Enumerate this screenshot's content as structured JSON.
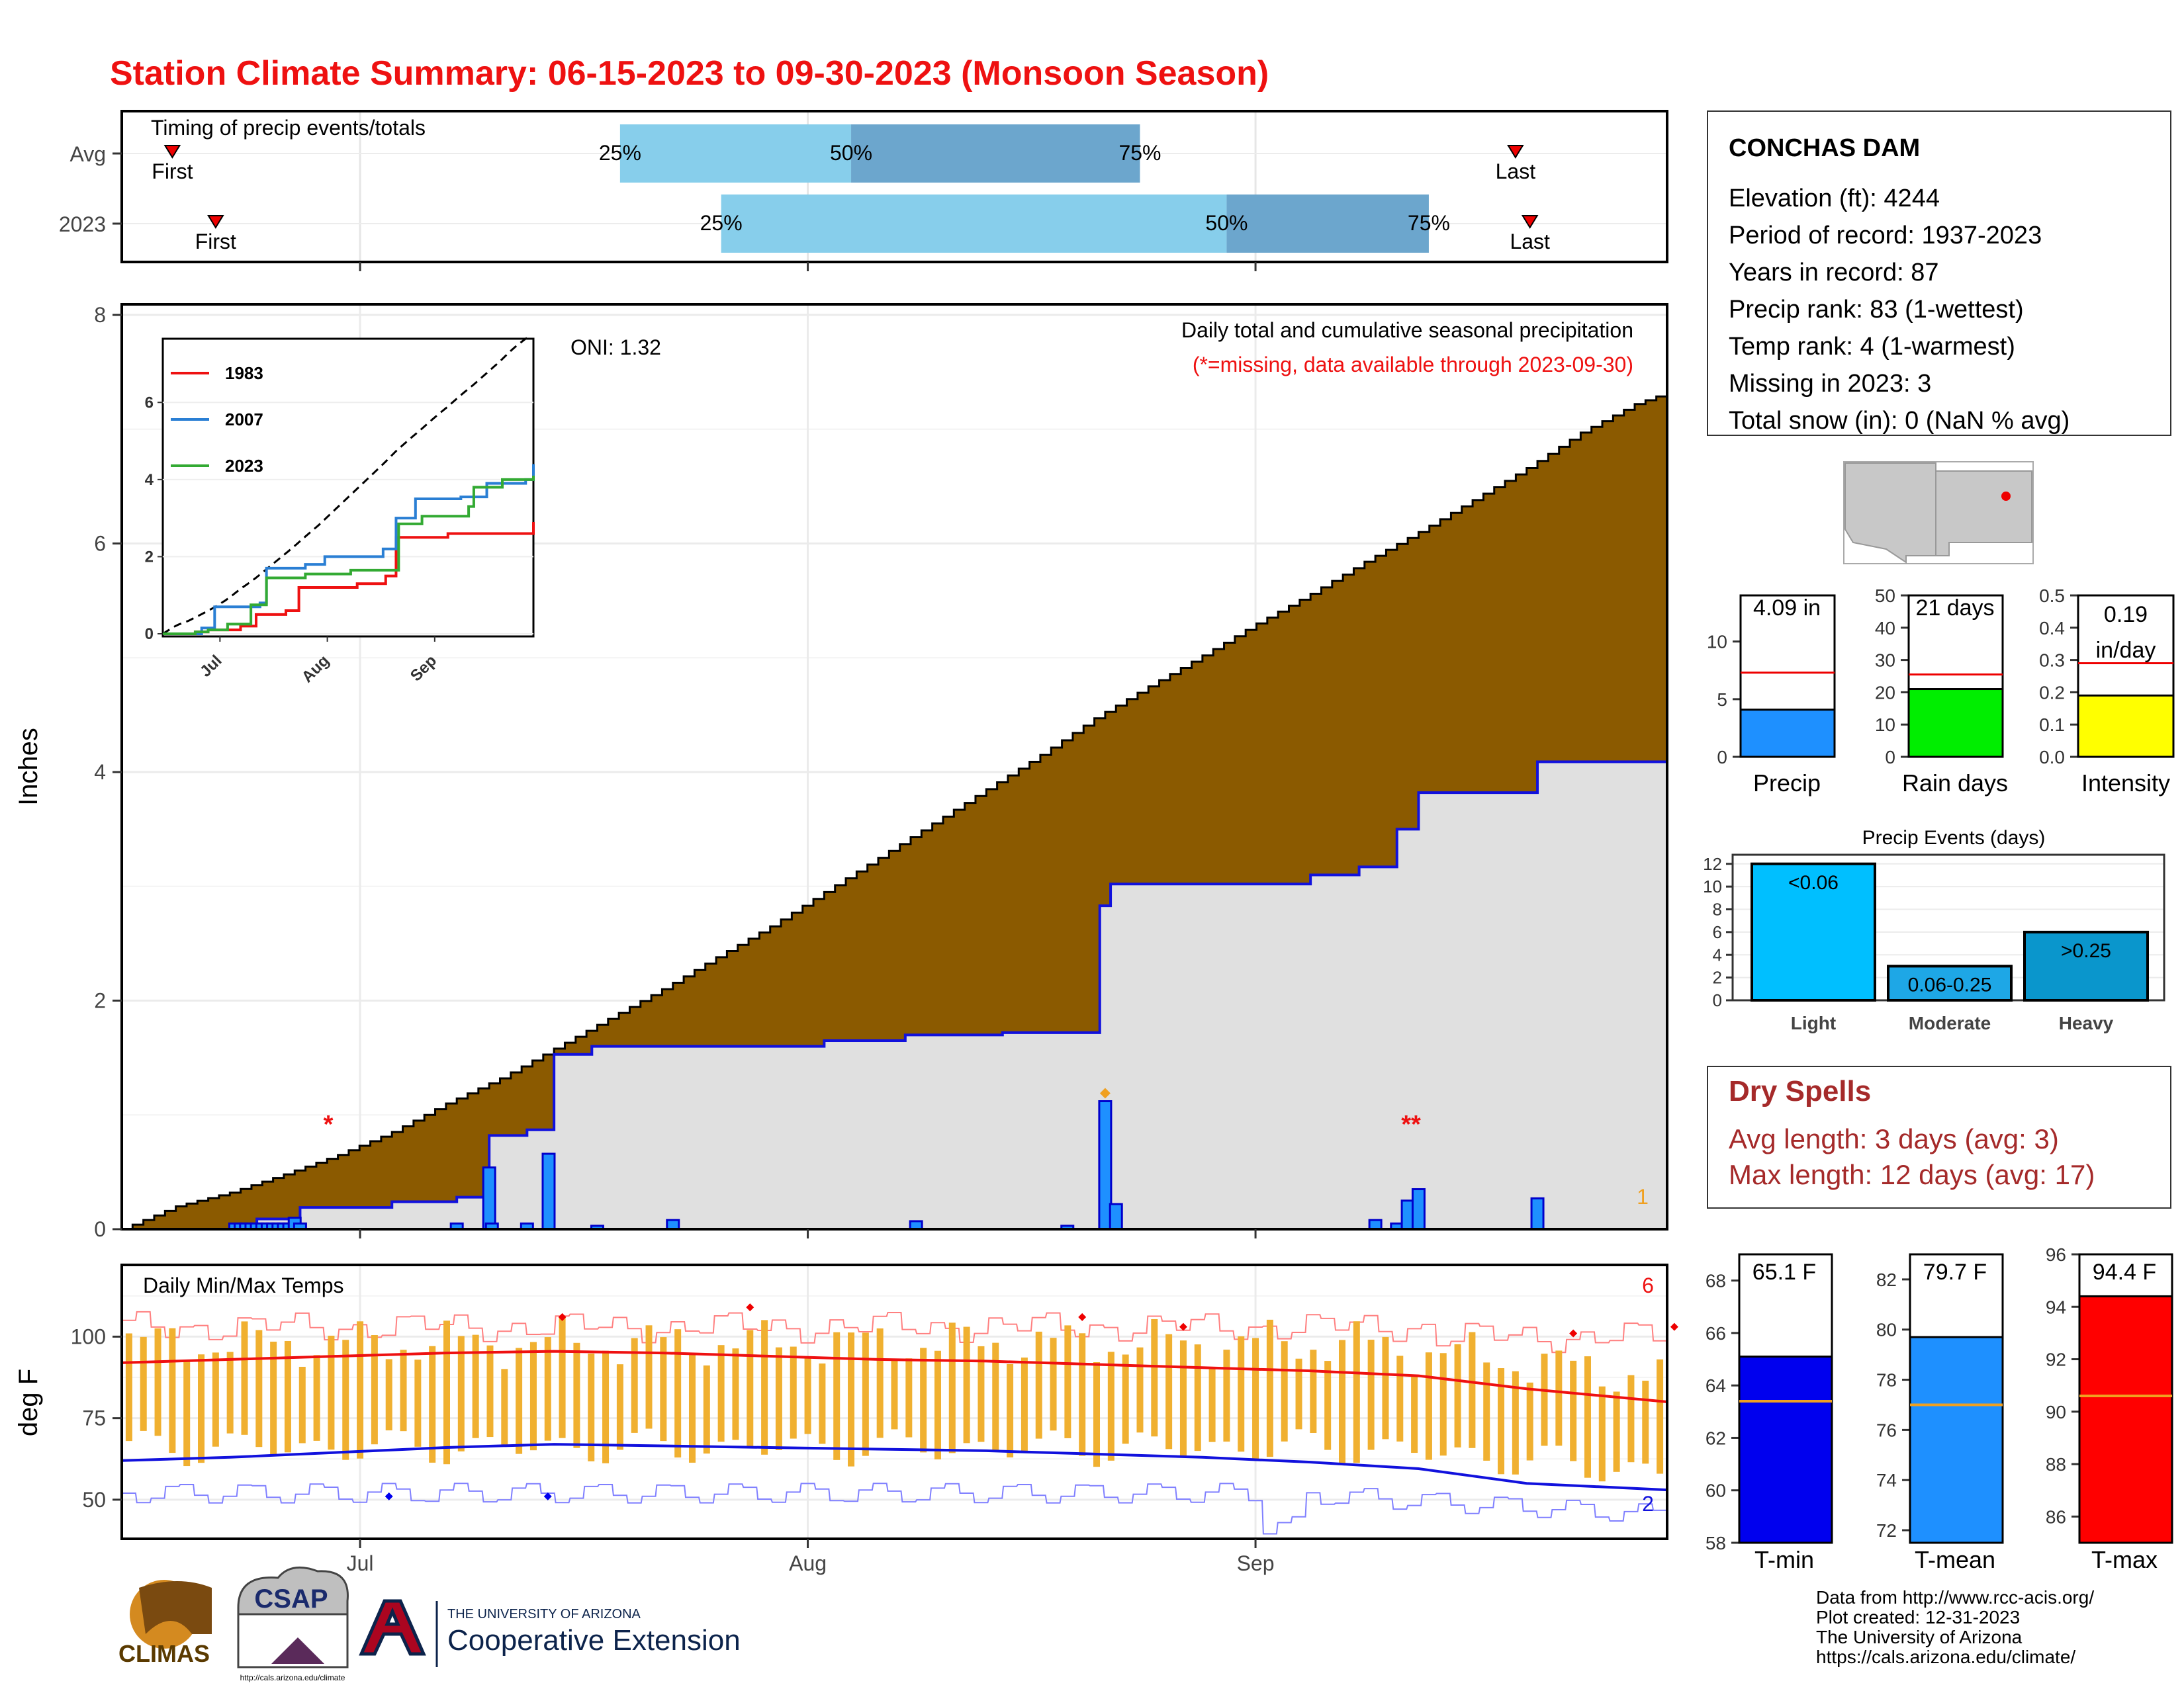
{
  "title": "Station Climate Summary: 06-15-2023 to 09-30-2023 (Monsoon Season)",
  "colors": {
    "title": "#ee1111",
    "precip_fill": "#8b5a00",
    "avg_fill": "#e0e0e0",
    "avg_line": "#1111dd",
    "daily_bar": "#1e90ff",
    "light_blue": "#87ceeb",
    "mid_blue": "#6ca6cd",
    "temp_bar": "#f0b030",
    "tmax_avg": "#ee1111",
    "tmin_avg": "#1111dd",
    "dry_text": "#a52a2a"
  },
  "timing": {
    "title": "Timing of precip events/totals",
    "rows": [
      {
        "label": "Avg",
        "first": "First",
        "last": "Last",
        "p25": "25%",
        "p50": "50%",
        "p75": "75%",
        "first_date": "2023-06-18",
        "p25_date": "2023-07-19",
        "p50_date": "2023-08-04",
        "p75_date": "2023-08-24",
        "last_date": "2023-09-19"
      },
      {
        "label": "2023",
        "first": "First",
        "last": "Last",
        "p25": "25%",
        "p50": "50%",
        "p75": "75%",
        "first_date": "2023-06-21",
        "p25_date": "2023-07-26",
        "p50_date": "2023-08-30",
        "p75_date": "2023-09-13",
        "last_date": "2023-09-20"
      }
    ]
  },
  "precip_panel": {
    "title": "Daily total and cumulative seasonal precipitation",
    "note": "(*=missing, data available through 2023-09-30)",
    "oni": "ONI: 1.32",
    "ylabel": "Inches",
    "yticks": [
      "0",
      "2",
      "4",
      "6",
      "8"
    ],
    "ylim": [
      0,
      8
    ],
    "corner_count": "1",
    "missing_1": "*",
    "missing_2": "**"
  },
  "inset": {
    "yticks": [
      "0",
      "2",
      "4",
      "6"
    ],
    "xticks": [
      "Jul",
      "Aug",
      "Sep"
    ],
    "legend": [
      {
        "name": "1983",
        "color": "#ee1111"
      },
      {
        "name": "2007",
        "color": "#2a7fd4"
      },
      {
        "name": "2023",
        "color": "#33aa33"
      }
    ]
  },
  "temp_panel": {
    "title": "Daily Min/Max Temps",
    "ylabel": "deg F",
    "yticks": [
      "50",
      "75",
      "100"
    ],
    "ylim": [
      40,
      120
    ],
    "count_high": "6",
    "count_low": "2"
  },
  "x_axis": {
    "ticks": [
      "Jul",
      "Aug",
      "Sep"
    ],
    "start": "2023-06-15",
    "end": "2023-09-30"
  },
  "station": {
    "name": "CONCHAS DAM",
    "lines": [
      "Elevation (ft): 4244",
      "Period of record: 1937-2023",
      "Years in record: 87",
      "Precip rank: 83 (1-wettest)",
      "Temp rank: 4 (1-warmest)",
      "Missing in 2023: 3",
      "Total snow (in): 0 (NaN % avg)"
    ]
  },
  "summary_bars": {
    "precip": {
      "label": "Precip",
      "value_text": "4.09 in",
      "value": 4.09,
      "avg": 7.3,
      "yticks": [
        "0",
        "5",
        "10"
      ],
      "ylim": [
        0,
        14
      ]
    },
    "raindays": {
      "label": "Rain days",
      "value_text": "21 days",
      "value": 21,
      "avg": 25.5,
      "yticks": [
        "0",
        "10",
        "20",
        "30",
        "40",
        "50"
      ],
      "ylim": [
        0,
        50
      ]
    },
    "intensity": {
      "label": "Intensity",
      "value_text": "0.19",
      "value_text2": "in/day",
      "value": 0.19,
      "avg": 0.29,
      "yticks": [
        "0.0",
        "0.1",
        "0.2",
        "0.3",
        "0.4",
        "0.5"
      ],
      "ylim": [
        0,
        0.5
      ]
    }
  },
  "events": {
    "title": "Precip Events (days)",
    "yticks": [
      "0",
      "2",
      "4",
      "6",
      "8",
      "10",
      "12"
    ],
    "ylim": [
      0,
      12
    ],
    "bars": [
      {
        "label": "Light",
        "text": "<0.06",
        "value": 12,
        "color": "#00bfff"
      },
      {
        "label": "Moderate",
        "text": "0.06-0.25",
        "value": 3,
        "color": "#1ea7e6"
      },
      {
        "label": "Heavy",
        "text": ">0.25",
        "value": 6,
        "color": "#0a96cc"
      }
    ]
  },
  "dry_spells": {
    "title": "Dry Spells",
    "line1": "Avg length: 3 days (avg: 3)",
    "line2": "Max length: 12 days (avg: 17)"
  },
  "temps": {
    "tmin": {
      "label": "T-min",
      "value_text": "65.1 F",
      "value": 65.1,
      "avg": 63.4,
      "yticks": [
        "58",
        "60",
        "62",
        "64",
        "66",
        "68"
      ],
      "ylim": [
        58,
        69
      ],
      "color": "#0000ee"
    },
    "tmean": {
      "label": "T-mean",
      "value_text": "79.7 F",
      "value": 79.7,
      "avg": 77.0,
      "yticks": [
        "72",
        "74",
        "76",
        "78",
        "80",
        "82"
      ],
      "ylim": [
        71.5,
        83
      ],
      "color": "#1e90ff"
    },
    "tmax": {
      "label": "T-max",
      "value_text": "94.4 F",
      "value": 94.4,
      "avg": 90.6,
      "yticks": [
        "86",
        "88",
        "90",
        "92",
        "94",
        "96"
      ],
      "ylim": [
        85,
        96
      ],
      "color": "#ff0000"
    }
  },
  "credits": [
    "Data from http://www.rcc-acis.org/",
    "Plot created: 12-31-2023",
    "The University of Arizona",
    "https://cals.arizona.edu/climate/"
  ],
  "logos": {
    "climas": "CLIMAS",
    "csap": "CSAP",
    "csap_url": "http://cals.arizona.edu/climate",
    "ua_top": "THE UNIVERSITY OF ARIZONA",
    "ua_bottom": "Cooperative Extension"
  },
  "chart_data": [
    {
      "type": "area",
      "title": "Daily total and cumulative seasonal precipitation",
      "ylabel": "Inches",
      "ylim": [
        0,
        8
      ],
      "cumulative_avg_knots": [
        [
          0,
          0
        ],
        [
          25,
          0
        ],
        [
          25,
          0.09
        ],
        [
          33,
          0.09
        ],
        [
          33,
          0.19
        ],
        [
          50,
          0.19
        ],
        [
          50,
          0.24
        ],
        [
          62,
          0.24
        ],
        [
          62,
          0.28
        ],
        [
          68,
          0.28
        ],
        [
          68,
          0.82
        ],
        [
          75,
          0.82
        ],
        [
          75,
          0.87
        ],
        [
          80,
          0.87
        ],
        [
          80,
          1.53
        ],
        [
          87,
          1.53
        ],
        [
          87,
          1.6
        ],
        [
          102,
          1.6
        ],
        [
          130,
          1.6
        ],
        [
          130,
          1.65
        ],
        [
          145,
          1.65
        ],
        [
          145,
          1.7
        ],
        [
          163,
          1.7
        ],
        [
          163,
          1.72
        ],
        [
          181,
          1.72
        ],
        [
          181,
          2.83
        ],
        [
          183,
          2.83
        ],
        [
          183,
          3.02
        ],
        [
          220,
          3.02
        ],
        [
          220,
          3.1
        ],
        [
          229,
          3.1
        ],
        [
          229,
          3.17
        ],
        [
          236,
          3.17
        ],
        [
          236,
          3.5
        ],
        [
          240,
          3.5
        ],
        [
          240,
          3.82
        ],
        [
          262,
          3.82
        ],
        [
          262,
          4.09
        ],
        [
          286,
          4.09
        ]
      ],
      "cumulative_normal_knots": [
        [
          0,
          0
        ],
        [
          10,
          0.2
        ],
        [
          20,
          0.32
        ],
        [
          30,
          0.48
        ],
        [
          40,
          0.65
        ],
        [
          50,
          0.85
        ],
        [
          60,
          1.1
        ],
        [
          70,
          1.32
        ],
        [
          80,
          1.58
        ],
        [
          90,
          1.84
        ],
        [
          100,
          2.1
        ],
        [
          110,
          2.38
        ],
        [
          120,
          2.65
        ],
        [
          130,
          2.95
        ],
        [
          140,
          3.25
        ],
        [
          150,
          3.55
        ],
        [
          160,
          3.85
        ],
        [
          170,
          4.15
        ],
        [
          180,
          4.47
        ],
        [
          190,
          4.75
        ],
        [
          200,
          5.02
        ],
        [
          210,
          5.3
        ],
        [
          220,
          5.56
        ],
        [
          230,
          5.84
        ],
        [
          240,
          6.1
        ],
        [
          250,
          6.38
        ],
        [
          260,
          6.66
        ],
        [
          270,
          6.97
        ],
        [
          280,
          7.22
        ],
        [
          286,
          7.32
        ]
      ],
      "series": [
        {
          "name": "Daily precip (days since Jun 15, inches)",
          "points": [
            [
              21,
              0.05
            ],
            [
              22,
              0.05
            ],
            [
              23,
              0.05
            ],
            [
              24,
              0.05
            ],
            [
              25,
              0.05
            ],
            [
              26,
              0.05
            ],
            [
              27,
              0.05
            ],
            [
              28,
              0.05
            ],
            [
              29,
              0.05
            ],
            [
              30,
              0.05
            ],
            [
              31,
              0.05
            ],
            [
              32,
              0.1
            ],
            [
              33,
              0.05
            ],
            [
              62,
              0.05
            ],
            [
              68,
              0.54
            ],
            [
              68.5,
              0.05
            ],
            [
              75,
              0.05
            ],
            [
              79,
              0.66
            ],
            [
              88,
              0.03
            ],
            [
              102,
              0.08
            ],
            [
              147,
              0.07
            ],
            [
              175,
              0.03
            ],
            [
              182,
              1.12
            ],
            [
              184,
              0.22
            ],
            [
              232,
              0.08
            ],
            [
              236,
              0.05
            ],
            [
              238,
              0.25
            ],
            [
              240,
              0.35
            ],
            [
              262,
              0.27
            ]
          ]
        }
      ]
    },
    {
      "type": "line",
      "title": "Daily Min/Max Temps",
      "ylabel": "deg F",
      "ylim": [
        40,
        120
      ],
      "series": [
        {
          "name": "Tmax avg",
          "points": [
            [
              0,
              92
            ],
            [
              20,
              93
            ],
            [
              40,
              94
            ],
            [
              60,
              95
            ],
            [
              80,
              95.5
            ],
            [
              100,
              95
            ],
            [
              120,
              94
            ],
            [
              140,
              93
            ],
            [
              160,
              92.5
            ],
            [
              180,
              91.5
            ],
            [
              200,
              90.5
            ],
            [
              220,
              89.5
            ],
            [
              240,
              88
            ],
            [
              260,
              84
            ],
            [
              286,
              80
            ]
          ]
        },
        {
          "name": "Tmin avg",
          "points": [
            [
              0,
              62
            ],
            [
              20,
              63
            ],
            [
              40,
              64.5
            ],
            [
              60,
              66
            ],
            [
              80,
              67
            ],
            [
              100,
              66.5
            ],
            [
              120,
              66
            ],
            [
              140,
              65.5
            ],
            [
              160,
              65
            ],
            [
              180,
              64
            ],
            [
              200,
              63
            ],
            [
              220,
              61.5
            ],
            [
              240,
              59.5
            ],
            [
              260,
              55
            ],
            [
              286,
              53
            ]
          ]
        }
      ]
    }
  ]
}
